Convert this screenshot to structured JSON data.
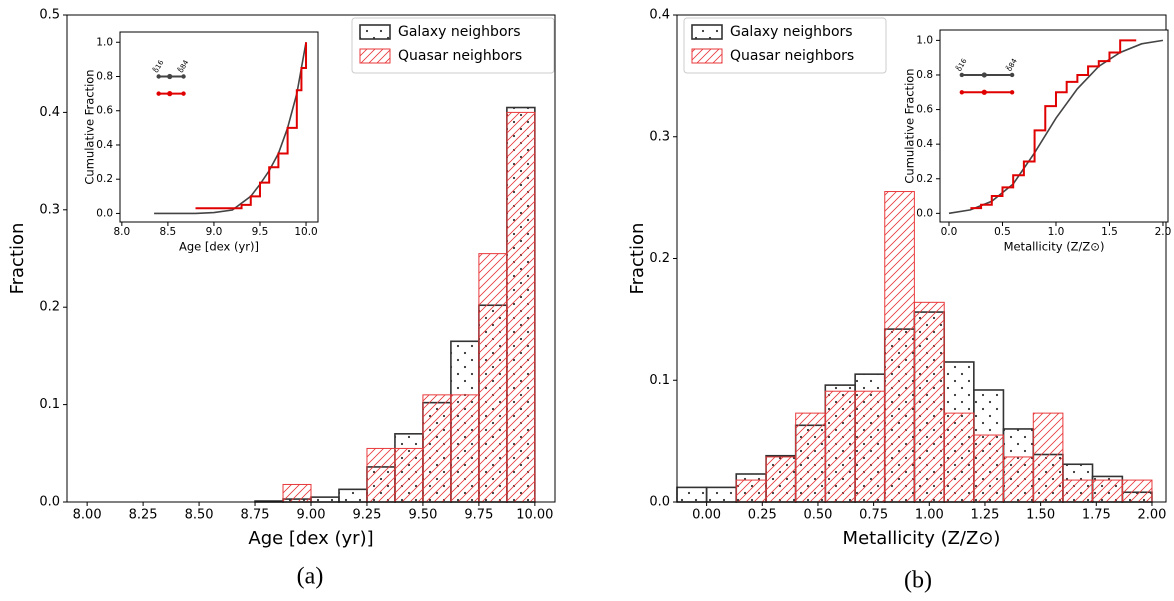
{
  "chart_data": [
    {
      "type": "histogram",
      "xlabel": "Age [dex (yr)]",
      "ylabel": "Fraction",
      "caption": "(a)",
      "bins": [
        8.0,
        8.125,
        8.25,
        8.375,
        8.5,
        8.625,
        8.75,
        8.875,
        9.0,
        9.125,
        9.25,
        9.375,
        9.5,
        9.625,
        9.75,
        9.875,
        10.0
      ],
      "series": [
        {
          "name": "Galaxy neighbors",
          "color": "#333333",
          "hatch": "dots",
          "values": [
            0,
            0,
            0,
            0,
            0,
            0,
            0.001,
            0.003,
            0.005,
            0.013,
            0.036,
            0.07,
            0.102,
            0.165,
            0.202,
            0.405
          ]
        },
        {
          "name": "Quasar neighbors",
          "color": "#e8393b",
          "hatch": "lines",
          "values": [
            0,
            0,
            0,
            0,
            0,
            0,
            0,
            0.018,
            0,
            0,
            0.055,
            0.055,
            0.11,
            0.11,
            0.255,
            0.4
          ]
        }
      ],
      "xlim": [
        7.91,
        10.09
      ],
      "ylim": [
        0,
        0.5
      ],
      "xticks": [
        {
          "value": 8.0,
          "label": "8.00"
        },
        8.25,
        {
          "value": 8.5,
          "label": "8.50"
        },
        8.75,
        {
          "value": 9.0,
          "label": "9.00"
        },
        9.25,
        {
          "value": 9.5,
          "label": "9.50"
        },
        9.75,
        {
          "value": 10.0,
          "label": "10.00"
        }
      ],
      "yticks": [
        {
          "value": 0,
          "label": "0.0"
        },
        0.1,
        0.2,
        0.3,
        0.4,
        0.5
      ],
      "legend": "upper right",
      "inset": {
        "type": "line",
        "xlabel": "Age [dex (yr)]",
        "ylabel": "Cumulative Fraction",
        "xlim": [
          7.98,
          10.13
        ],
        "ylim": [
          -0.05,
          1.06
        ],
        "xticks": [
          {
            "value": 8.0,
            "label": "8.0"
          },
          8.5,
          {
            "value": 9.0,
            "label": "9.0"
          },
          9.5,
          {
            "value": 10.0,
            "label": "10.0"
          }
        ],
        "yticks": [
          {
            "value": 0,
            "label": "0.0"
          },
          0.2,
          0.4,
          0.6,
          0.8,
          {
            "value": 1,
            "label": "1.0"
          }
        ],
        "annotations": [
          "δ̃16",
          "δ̃84"
        ],
        "series": [
          {
            "color": "#444444",
            "step": false,
            "x": [
              8.35,
              8.8,
              9.0,
              9.2,
              9.4,
              9.5,
              9.6,
              9.7,
              9.8,
              9.9,
              10.0
            ],
            "values": [
              0,
              0,
              0.005,
              0.02,
              0.1,
              0.17,
              0.25,
              0.35,
              0.5,
              0.7,
              1.0
            ],
            "interval": [
              8.4,
              8.52,
              8.67
            ],
            "interval_y": 0.8
          },
          {
            "color": "#e00000",
            "step": true,
            "x": [
              8.8,
              9.3,
              9.4,
              9.5,
              9.6,
              9.7,
              9.8,
              9.9,
              9.95,
              10.0
            ],
            "values": [
              0.03,
              0.05,
              0.1,
              0.18,
              0.27,
              0.35,
              0.5,
              0.72,
              0.85,
              1.0
            ],
            "interval": [
              8.4,
              8.52,
              8.67
            ],
            "interval_y": 0.7
          }
        ]
      }
    },
    {
      "type": "histogram",
      "xlabel": "Metallicity (Z/Z⊙)",
      "ylabel": "Fraction",
      "caption": "(b)",
      "bins": [
        -0.133,
        0,
        0.133,
        0.267,
        0.4,
        0.533,
        0.667,
        0.8,
        0.933,
        1.067,
        1.2,
        1.333,
        1.467,
        1.6,
        1.733,
        1.867,
        2.0
      ],
      "series": [
        {
          "name": "Galaxy neighbors",
          "color": "#333333",
          "hatch": "dots",
          "values": [
            0.012,
            0.012,
            0.023,
            0.038,
            0.063,
            0.096,
            0.105,
            0.142,
            0.156,
            0.115,
            0.092,
            0.06,
            0.039,
            0.031,
            0.021,
            0.008
          ]
        },
        {
          "name": "Quasar neighbors",
          "color": "#e8393b",
          "hatch": "lines",
          "values": [
            0,
            0,
            0.018,
            0.037,
            0.073,
            0.091,
            0.091,
            0.255,
            0.164,
            0.073,
            0.055,
            0.037,
            0.073,
            0.018,
            0.018,
            0.018
          ]
        }
      ],
      "xlim": [
        -0.133,
        2.063
      ],
      "ylim": [
        0,
        0.4
      ],
      "xticks": [
        {
          "value": 0,
          "label": "0.00"
        },
        0.25,
        {
          "value": 0.5,
          "label": "0.50"
        },
        0.75,
        {
          "value": 1.0,
          "label": "1.00"
        },
        1.25,
        {
          "value": 1.5,
          "label": "1.50"
        },
        1.75,
        {
          "value": 2.0,
          "label": "2.00"
        }
      ],
      "yticks": [
        {
          "value": 0,
          "label": "0.0"
        },
        0.1,
        0.2,
        0.3,
        0.4
      ],
      "legend": "upper left",
      "inset": {
        "type": "line",
        "xlabel": "Metallicity (Z/Z⊙)",
        "ylabel": "Cumulative Fraction",
        "xlim": [
          -0.084,
          2.047
        ],
        "ylim": [
          -0.05,
          1.06
        ],
        "xticks": [
          {
            "value": 0,
            "label": "0.0"
          },
          0.5,
          {
            "value": 1.0,
            "label": "1.0"
          },
          1.5,
          {
            "value": 2.0,
            "label": "2.0"
          }
        ],
        "yticks": [
          {
            "value": 0,
            "label": "0.0"
          },
          0.2,
          0.4,
          0.6,
          0.8,
          {
            "value": 1,
            "label": "1.0"
          }
        ],
        "annotations": [
          "δ̃16",
          "δ̃84"
        ],
        "series": [
          {
            "color": "#444444",
            "step": false,
            "x": [
              0,
              0.2,
              0.4,
              0.6,
              0.8,
              1.0,
              1.2,
              1.4,
              1.6,
              1.8,
              2.0
            ],
            "values": [
              0,
              0.02,
              0.07,
              0.17,
              0.35,
              0.55,
              0.72,
              0.85,
              0.93,
              0.98,
              1.0
            ],
            "interval": [
              0.12,
              0.33,
              0.59
            ],
            "interval_y": 0.8
          },
          {
            "color": "#e00000",
            "step": true,
            "x": [
              0.2,
              0.3,
              0.4,
              0.5,
              0.6,
              0.7,
              0.8,
              0.9,
              1.0,
              1.1,
              1.2,
              1.3,
              1.4,
              1.5,
              1.6,
              1.75
            ],
            "values": [
              0.03,
              0.05,
              0.1,
              0.15,
              0.22,
              0.3,
              0.48,
              0.62,
              0.7,
              0.76,
              0.8,
              0.85,
              0.88,
              0.93,
              1.0,
              1.0
            ],
            "interval": [
              0.12,
              0.33,
              0.59
            ],
            "interval_y": 0.7
          }
        ]
      }
    }
  ]
}
